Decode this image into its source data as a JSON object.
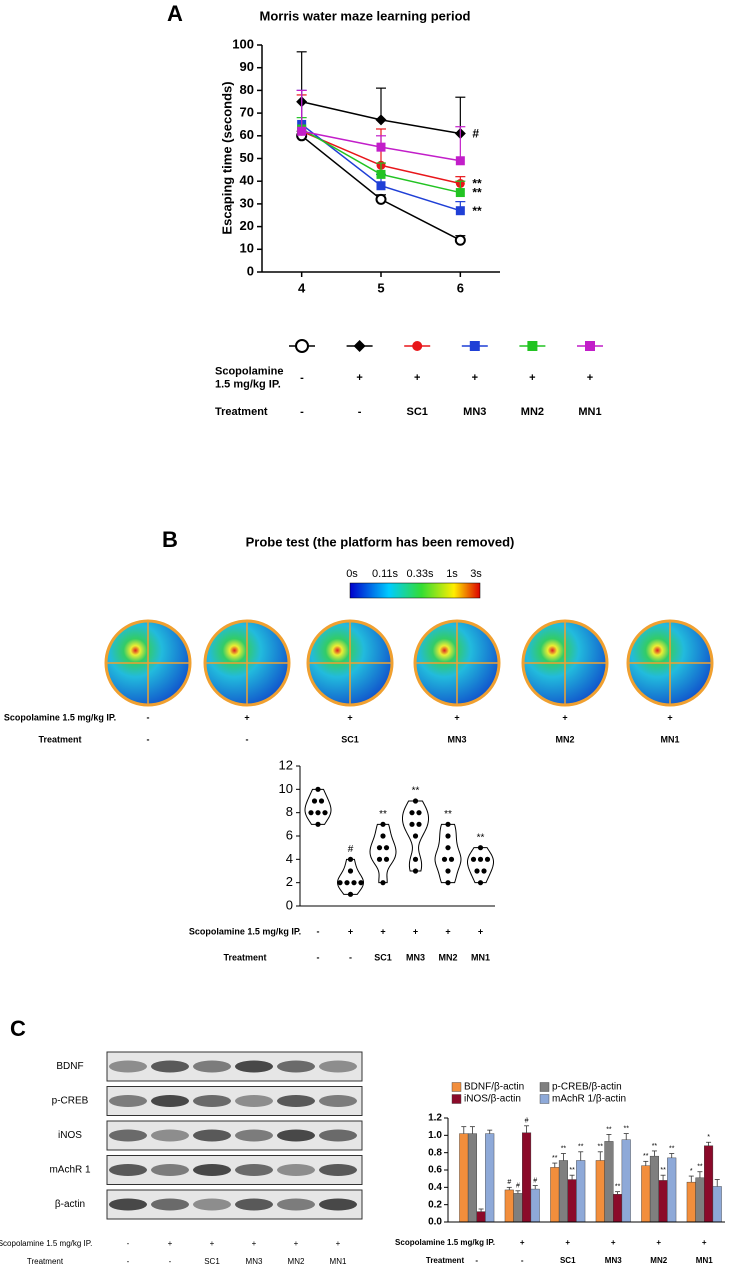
{
  "panel_labels": [
    "A",
    "B",
    "C"
  ],
  "chart_data": [
    {
      "type": "line",
      "title": "Morris water maze learning period",
      "y_label": "Escaping time (seconds)",
      "x": [
        4,
        5,
        6
      ],
      "xlim": [
        3.5,
        6.5
      ],
      "xticks": [
        4,
        5,
        6
      ],
      "ylim": [
        0,
        100
      ],
      "yticks": [
        0,
        10,
        20,
        30,
        40,
        50,
        60,
        70,
        80,
        90,
        100
      ],
      "series": [
        {
          "color": "#000000",
          "marker": "open-circle",
          "values": [
            60,
            32,
            14
          ],
          "errors": [
            2,
            2,
            2
          ]
        },
        {
          "color": "#000000",
          "marker": "diamond",
          "values": [
            75,
            67,
            61
          ],
          "errors": [
            22,
            14,
            16
          ],
          "end_label": "#"
        },
        {
          "color": "#e8161a",
          "marker": "circle",
          "values": [
            62,
            47,
            39
          ],
          "errors": [
            16,
            16,
            3
          ],
          "end_label": "**"
        },
        {
          "color": "#1f3fd6",
          "marker": "square",
          "values": [
            65,
            38,
            27
          ],
          "errors": [
            15,
            5,
            4
          ],
          "end_label": "**"
        },
        {
          "color": "#22c322",
          "marker": "square",
          "values": [
            63,
            43,
            35
          ],
          "errors": [
            5,
            5,
            5
          ],
          "end_label": "**"
        },
        {
          "color": "#c21ec9",
          "marker": "square",
          "values": [
            62,
            55,
            49
          ],
          "errors": [
            18,
            5,
            15
          ]
        }
      ],
      "conditions": [
        {
          "label": [
            "Scopolamine",
            "1.5 mg/kg IP."
          ],
          "cells": [
            "-",
            "+",
            "+",
            "+",
            "+",
            "+"
          ]
        },
        {
          "label": [
            "Treatment"
          ],
          "cells": [
            "-",
            "-",
            "SC1",
            "MN3",
            "MN2",
            "MN1"
          ]
        }
      ]
    },
    {
      "type": "violin",
      "ylim": [
        0,
        12
      ],
      "yticks": [
        0,
        2,
        4,
        6,
        8,
        10,
        12
      ],
      "groups": [
        {
          "values": [
            10,
            9,
            9,
            8,
            8,
            8,
            7
          ]
        },
        {
          "values": [
            4,
            3,
            2,
            2,
            2,
            2,
            1
          ],
          "label": "#"
        },
        {
          "values": [
            7,
            6,
            5,
            5,
            4,
            4,
            2
          ],
          "label": "**"
        },
        {
          "values": [
            9,
            8,
            8,
            7,
            7,
            6,
            4,
            3
          ],
          "label": "**"
        },
        {
          "values": [
            7,
            6,
            5,
            4,
            4,
            3,
            2
          ],
          "label": "**"
        },
        {
          "values": [
            5,
            4,
            4,
            4,
            3,
            3,
            2
          ],
          "label": "**"
        }
      ],
      "conditions": [
        {
          "label": [
            "Scopolamine 1.5 mg/kg IP."
          ],
          "cells": [
            "-",
            "+",
            "+",
            "+",
            "+",
            "+"
          ]
        },
        {
          "label": [
            "Treatment"
          ],
          "cells": [
            "-",
            "-",
            "SC1",
            "MN3",
            "MN2",
            "MN1"
          ]
        }
      ]
    },
    {
      "type": "bar",
      "ylim": [
        0,
        1.2
      ],
      "yticks": [
        {
          "value": 0,
          "label": "0.0"
        },
        0.2,
        0.4,
        0.6,
        0.8,
        {
          "value": 1,
          "label": "1.0"
        },
        1.2
      ],
      "series": [
        {
          "name": "BDNF/β-actin",
          "color": "#f28e3c",
          "values": [
            1.02,
            0.37,
            0.63,
            0.71,
            0.65,
            0.46
          ],
          "errors": [
            0.08,
            0.03,
            0.05,
            0.1,
            0.05,
            0.07
          ],
          "labels": [
            null,
            "#",
            "**",
            "**",
            "**",
            "*"
          ]
        },
        {
          "name": "p-CREB/β-actin",
          "color": "#7f7f7f",
          "values": [
            1.02,
            0.33,
            0.71,
            0.93,
            0.76,
            0.51
          ],
          "errors": [
            0.08,
            0.03,
            0.08,
            0.08,
            0.06,
            0.07
          ],
          "labels": [
            null,
            "#",
            "**",
            "**",
            "**",
            "**"
          ]
        },
        {
          "name": "iNOS/β-actin",
          "color": "#8b0a2a",
          "values": [
            0.12,
            1.03,
            0.49,
            0.32,
            0.48,
            0.88
          ],
          "errors": [
            0.03,
            0.08,
            0.05,
            0.03,
            0.06,
            0.04
          ],
          "labels": [
            null,
            "#",
            "**",
            "**",
            "**",
            "*"
          ]
        },
        {
          "name": "mAchR 1/β-actin",
          "color": "#8ea9d8",
          "values": [
            1.02,
            0.38,
            0.71,
            0.95,
            0.74,
            0.41
          ],
          "errors": [
            0.04,
            0.04,
            0.1,
            0.07,
            0.05,
            0.08
          ],
          "labels": [
            null,
            "#",
            "**",
            "**",
            "**",
            null
          ]
        }
      ],
      "conditions": [
        {
          "label": [
            "Scopolamine 1.5 mg/kg IP."
          ],
          "cells": [
            "-",
            "+",
            "+",
            "+",
            "+",
            "+"
          ]
        },
        {
          "label": [
            "Treatment"
          ],
          "cells": [
            "-",
            "-",
            "SC1",
            "MN3",
            "MN2",
            "MN1"
          ]
        }
      ]
    }
  ],
  "probe": {
    "title": "Probe test (the platform has been removed)",
    "colorbar_labels": [
      "0s",
      "0.11s",
      "0.33s",
      "1s",
      "3s"
    ],
    "conditions": [
      {
        "label": [
          "Scopolamine 1.5 mg/kg IP."
        ],
        "cells": [
          "-",
          "+",
          "+",
          "+",
          "+",
          "+"
        ]
      },
      {
        "label": [
          "Treatment"
        ],
        "cells": [
          "-",
          "-",
          "SC1",
          "MN3",
          "MN2",
          "MN1"
        ]
      }
    ]
  },
  "blot": {
    "proteins": [
      "BDNF",
      "p-CREB",
      "iNOS",
      "mAchR 1",
      "β-actin"
    ],
    "conditions": [
      {
        "label": [
          "Scopolamine 1.5 mg/kg IP."
        ],
        "cells": [
          "-",
          "+",
          "+",
          "+",
          "+",
          "+"
        ]
      },
      {
        "label": [
          "Treatment"
        ],
        "cells": [
          "-",
          "-",
          "SC1",
          "MN3",
          "MN2",
          "MN1"
        ]
      }
    ]
  }
}
